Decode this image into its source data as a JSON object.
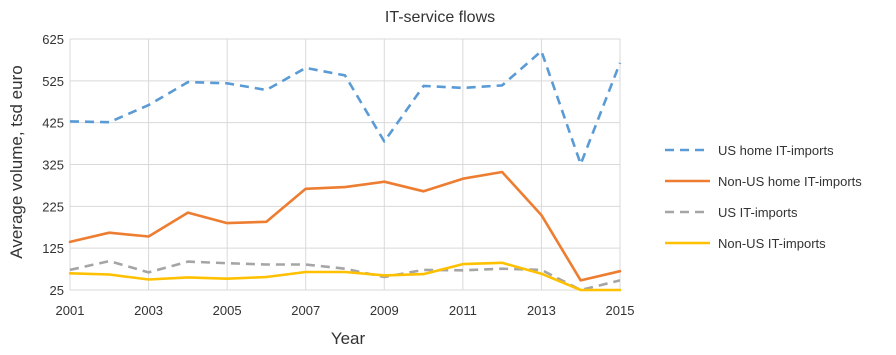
{
  "chart_data": {
    "type": "line",
    "title": "IT-service flows",
    "xlabel": "Year",
    "ylabel": "Average volume, tsd euro",
    "x": [
      2001,
      2002,
      2003,
      2004,
      2005,
      2006,
      2007,
      2008,
      2009,
      2010,
      2011,
      2012,
      2013,
      2014,
      2015
    ],
    "x_ticks": [
      "2001",
      "2003",
      "2005",
      "2007",
      "2009",
      "2011",
      "2013",
      "2015"
    ],
    "y_ticks": [
      "25",
      "125",
      "225",
      "325",
      "425",
      "525",
      "625"
    ],
    "xlim": [
      2001,
      2015
    ],
    "ylim": [
      25,
      625
    ],
    "grid": true,
    "legend_position": "right",
    "series": [
      {
        "name": "US home IT-imports",
        "color": "#5B9BD5",
        "dash": "dashed",
        "values": [
          428,
          426,
          467,
          522,
          519,
          503,
          556,
          538,
          380,
          513,
          508,
          514,
          596,
          326,
          568
        ]
      },
      {
        "name": "Non-US home IT-imports",
        "color": "#ED7D31",
        "dash": "solid",
        "values": [
          140,
          162,
          153,
          210,
          185,
          188,
          267,
          271,
          284,
          261,
          291,
          307,
          204,
          48,
          70
        ]
      },
      {
        "name": "US IT-imports",
        "color": "#A5A5A5",
        "dash": "dashed",
        "values": [
          73,
          94,
          67,
          93,
          89,
          86,
          86,
          76,
          56,
          73,
          72,
          76,
          73,
          25,
          48
        ]
      },
      {
        "name": "Non-US IT-imports",
        "color": "#FFC000",
        "dash": "solid",
        "values": [
          65,
          62,
          50,
          55,
          52,
          56,
          68,
          68,
          60,
          63,
          87,
          90,
          64,
          25,
          25
        ]
      }
    ]
  }
}
